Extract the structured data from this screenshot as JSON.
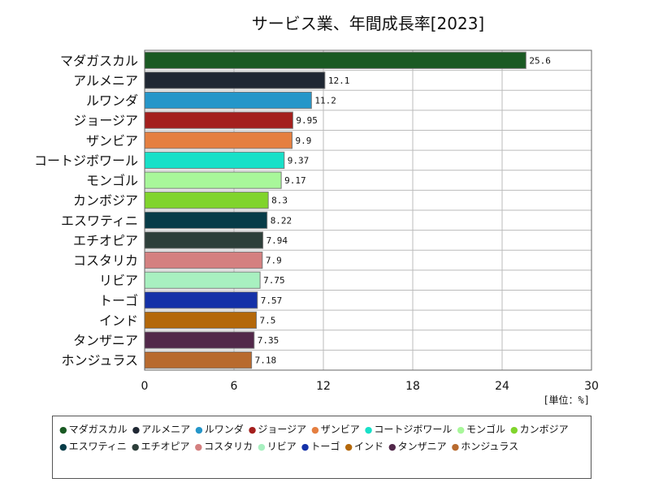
{
  "chart_data": {
    "type": "bar",
    "orientation": "horizontal",
    "title": "サービス業、年間成長率[2023]",
    "unit_label": "[単位：%]",
    "xlim": [
      0,
      30
    ],
    "x_ticks": [
      "0",
      "6",
      "12",
      "18",
      "24",
      "30"
    ],
    "grid": true,
    "legend_position": "bottom",
    "categories": [
      "マダガスカル",
      "アルメニア",
      "ルワンダ",
      "ジョージア",
      "ザンビア",
      "コートジボワール",
      "モンゴル",
      "カンボジア",
      "エスワティニ",
      "エチオピア",
      "コスタリカ",
      "リビア",
      "トーゴ",
      "インド",
      "タンザニア",
      "ホンジュラス"
    ],
    "values": [
      25.6,
      12.1,
      11.2,
      9.95,
      9.9,
      9.37,
      9.17,
      8.3,
      8.22,
      7.94,
      7.9,
      7.75,
      7.57,
      7.5,
      7.35,
      7.18
    ],
    "value_labels": [
      "25.6",
      "12.1",
      "11.2",
      "9.95",
      "9.9",
      "9.37",
      "9.17",
      "8.3",
      "8.22",
      "7.94",
      "7.9",
      "7.75",
      "7.57",
      "7.5",
      "7.35",
      "7.18"
    ],
    "colors": [
      "#1a5a23",
      "#1f2733",
      "#2596c9",
      "#a41f1d",
      "#e57f40",
      "#18e0c8",
      "#a8f79a",
      "#80d42c",
      "#073c48",
      "#2d3f3a",
      "#d48080",
      "#a8f0c0",
      "#1431a8",
      "#b4680a",
      "#52284a",
      "#b86a2e"
    ]
  }
}
